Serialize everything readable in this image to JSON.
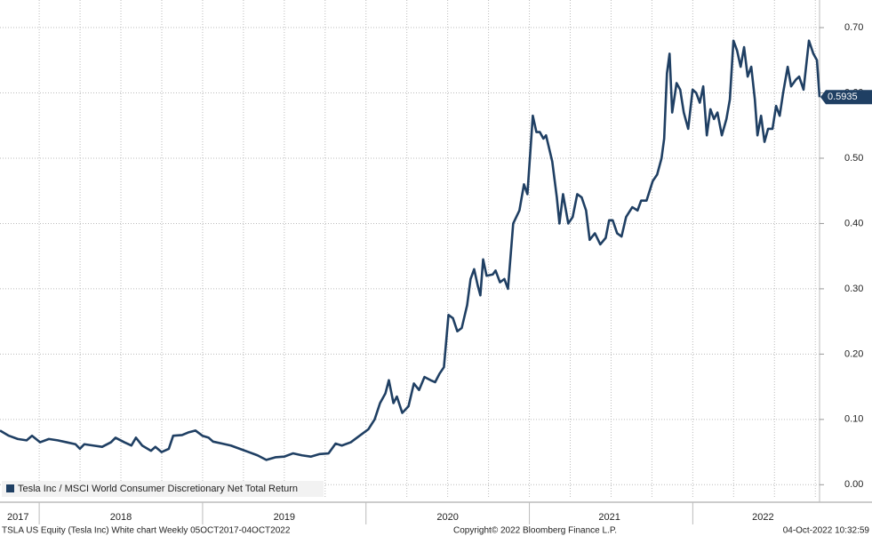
{
  "chart_data": {
    "type": "line",
    "x": [
      2017.76,
      2017.814,
      2017.869,
      2017.923,
      2017.956,
      2018.005,
      2018.059,
      2018.113,
      2018.168,
      2018.222,
      2018.249,
      2018.276,
      2018.331,
      2018.385,
      2018.439,
      2018.467,
      2018.521,
      2018.564,
      2018.592,
      2018.63,
      2018.684,
      2018.711,
      2018.749,
      2018.793,
      2018.82,
      2018.874,
      2018.912,
      2018.956,
      2018.999,
      2019.037,
      2019.064,
      2019.119,
      2019.173,
      2019.227,
      2019.282,
      2019.336,
      2019.39,
      2019.445,
      2019.499,
      2019.553,
      2019.608,
      2019.662,
      2019.717,
      2019.771,
      2019.814,
      2019.852,
      2019.907,
      2019.961,
      2020.015,
      2020.053,
      2020.086,
      2020.119,
      2020.14,
      2020.168,
      2020.189,
      2020.222,
      2020.26,
      2020.293,
      2020.325,
      2020.358,
      2020.396,
      2020.423,
      2020.45,
      2020.477,
      2020.505,
      2020.532,
      2020.559,
      2020.586,
      2020.619,
      2020.64,
      2020.662,
      2020.684,
      2020.7,
      2020.717,
      2020.738,
      2020.776,
      2020.793,
      2020.82,
      2020.847,
      2020.869,
      2020.901,
      2020.939,
      2020.967,
      2020.988,
      2021.021,
      2021.043,
      2021.064,
      2021.086,
      2021.102,
      2021.14,
      2021.168,
      2021.184,
      2021.206,
      2021.238,
      2021.265,
      2021.293,
      2021.32,
      2021.347,
      2021.369,
      2021.401,
      2021.434,
      2021.467,
      2021.488,
      2021.51,
      2021.537,
      2021.564,
      2021.592,
      2021.63,
      2021.662,
      2021.684,
      2021.717,
      2021.755,
      2021.782,
      2021.809,
      2021.825,
      2021.842,
      2021.858,
      2021.874,
      2021.901,
      2021.923,
      2021.945,
      2021.972,
      2021.999,
      2022.021,
      2022.043,
      2022.064,
      2022.086,
      2022.108,
      2022.13,
      2022.151,
      2022.178,
      2022.206,
      2022.227,
      2022.249,
      2022.271,
      2022.293,
      2022.314,
      2022.336,
      2022.358,
      2022.38,
      2022.396,
      2022.418,
      2022.439,
      2022.461,
      2022.488,
      2022.51,
      2022.532,
      2022.553,
      2022.581,
      2022.602,
      2022.63,
      2022.651,
      2022.678,
      2022.711,
      2022.738,
      2022.76,
      2022.776
    ],
    "series": [
      {
        "name": "Tesla Inc / MSCI World Consumer Discretionary Net Total Return",
        "color": "#1f3f63",
        "values": [
          0.083,
          0.075,
          0.07,
          0.068,
          0.075,
          0.065,
          0.07,
          0.068,
          0.065,
          0.062,
          0.055,
          0.062,
          0.06,
          0.058,
          0.065,
          0.072,
          0.065,
          0.06,
          0.072,
          0.06,
          0.052,
          0.058,
          0.05,
          0.055,
          0.075,
          0.076,
          0.08,
          0.083,
          0.075,
          0.072,
          0.066,
          0.063,
          0.06,
          0.055,
          0.05,
          0.045,
          0.038,
          0.042,
          0.043,
          0.048,
          0.045,
          0.043,
          0.047,
          0.048,
          0.063,
          0.06,
          0.065,
          0.075,
          0.085,
          0.1,
          0.125,
          0.14,
          0.16,
          0.125,
          0.135,
          0.11,
          0.12,
          0.155,
          0.145,
          0.165,
          0.16,
          0.157,
          0.17,
          0.18,
          0.26,
          0.255,
          0.235,
          0.24,
          0.275,
          0.315,
          0.33,
          0.305,
          0.29,
          0.345,
          0.32,
          0.322,
          0.328,
          0.31,
          0.315,
          0.3,
          0.4,
          0.42,
          0.46,
          0.445,
          0.565,
          0.54,
          0.54,
          0.53,
          0.535,
          0.495,
          0.44,
          0.4,
          0.445,
          0.4,
          0.41,
          0.445,
          0.44,
          0.42,
          0.375,
          0.385,
          0.368,
          0.378,
          0.405,
          0.405,
          0.385,
          0.38,
          0.41,
          0.425,
          0.42,
          0.435,
          0.435,
          0.465,
          0.475,
          0.5,
          0.53,
          0.63,
          0.66,
          0.57,
          0.615,
          0.605,
          0.57,
          0.545,
          0.605,
          0.6,
          0.585,
          0.61,
          0.535,
          0.575,
          0.56,
          0.57,
          0.535,
          0.56,
          0.59,
          0.68,
          0.665,
          0.64,
          0.67,
          0.625,
          0.64,
          0.59,
          0.535,
          0.565,
          0.525,
          0.545,
          0.545,
          0.58,
          0.565,
          0.6,
          0.64,
          0.61,
          0.62,
          0.625,
          0.605,
          0.68,
          0.66,
          0.65,
          0.5935
        ]
      }
    ],
    "xlim": [
      2017.76,
      2022.776
    ],
    "xticks": [
      {
        "value": 2017.87,
        "label": "2017"
      },
      {
        "value": 2018.5,
        "label": "2018"
      },
      {
        "value": 2019.5,
        "label": "2019"
      },
      {
        "value": 2020.5,
        "label": "2020"
      },
      {
        "value": 2021.49,
        "label": "2021"
      },
      {
        "value": 2022.43,
        "label": "2022"
      }
    ],
    "ylim": [
      -0.02,
      0.7164
    ],
    "yticks": [
      {
        "value": 0,
        "label": "0.00"
      },
      {
        "value": 0.1,
        "label": "0.10"
      },
      {
        "value": 0.2,
        "label": "0.20"
      },
      {
        "value": 0.3,
        "label": "0.30"
      },
      {
        "value": 0.4,
        "label": "0.40"
      },
      {
        "value": 0.5,
        "label": "0.50"
      },
      {
        "value": 0.6,
        "label": "0.60"
      },
      {
        "value": 0.7,
        "label": "0.70"
      }
    ],
    "grid": true,
    "legend": "bottom-left",
    "footer": {
      "left": "TSLA US Equity (Tesla Inc) White chart  Weekly 05OCT2017-04OCT2022",
      "center": "Copyright© 2022 Bloomberg Finance L.P.",
      "right": "04-Oct-2022 10:32:59"
    }
  }
}
